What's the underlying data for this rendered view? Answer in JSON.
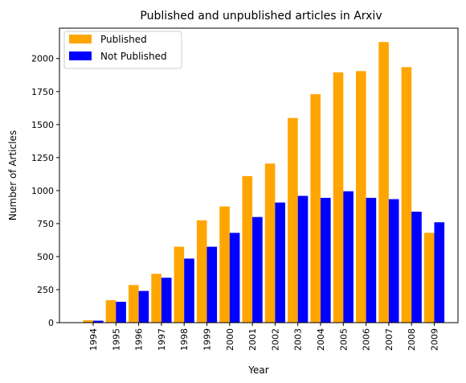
{
  "chart_data": {
    "type": "bar",
    "title": "Published and unpublished articles in Arxiv",
    "xlabel": "Year",
    "ylabel": "Number of Articles",
    "categories": [
      "1994",
      "1995",
      "1996",
      "1997",
      "1998",
      "1999",
      "2000",
      "2001",
      "2002",
      "2003",
      "2004",
      "2005",
      "2006",
      "2007",
      "2008",
      "2009"
    ],
    "series": [
      {
        "name": "Published",
        "color": "#ffa500",
        "values": [
          18,
          170,
          285,
          370,
          575,
          775,
          880,
          1110,
          1205,
          1550,
          1730,
          1895,
          1905,
          2125,
          1935,
          680
        ]
      },
      {
        "name": "Not Published",
        "color": "#0000ff",
        "values": [
          15,
          158,
          240,
          340,
          485,
          575,
          680,
          800,
          910,
          960,
          945,
          995,
          945,
          935,
          840,
          760
        ]
      }
    ],
    "ylim": [
      0,
      2230
    ],
    "yticks": [
      0,
      250,
      500,
      750,
      1000,
      1250,
      1500,
      1750,
      2000
    ],
    "grid": false,
    "legend_position": "top-left"
  }
}
